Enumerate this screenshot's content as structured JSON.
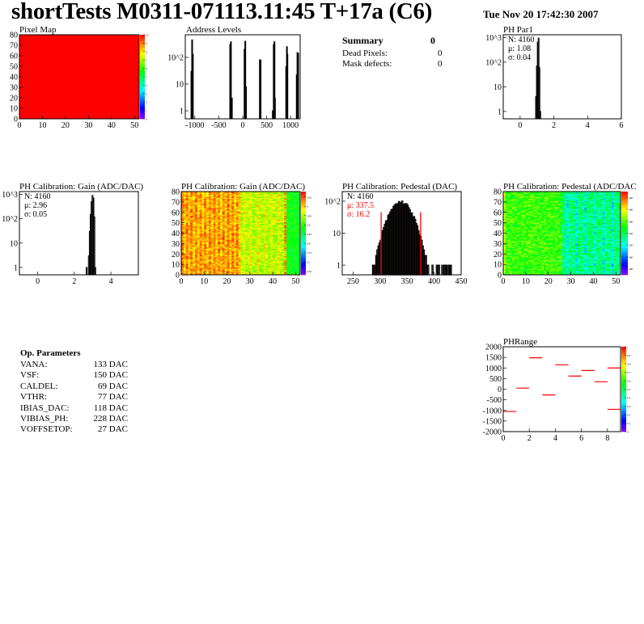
{
  "header": {
    "title": "shortTests M0311-071113.11:45 T+17a (C6)",
    "date": "Tue Nov 20 17:42:30 2007"
  },
  "summary": {
    "title": "Summary",
    "value": "0",
    "rows": [
      {
        "label": "Dead Pixels:",
        "value": "0"
      },
      {
        "label": "Mask defects:",
        "value": "0"
      }
    ]
  },
  "op_parameters": {
    "title": "Op. Parameters",
    "rows": [
      {
        "label": "VANA:",
        "value": "133 DAC"
      },
      {
        "label": "VSF:",
        "value": "150 DAC"
      },
      {
        "label": "CALDEL:",
        "value": "69 DAC"
      },
      {
        "label": "VTHR:",
        "value": "77 DAC"
      },
      {
        "label": "IBIAS_DAC:",
        "value": "118 DAC"
      },
      {
        "label": "VIBIAS_PH:",
        "value": "228 DAC"
      },
      {
        "label": "VOFFSETOP:",
        "value": "27 DAC"
      }
    ]
  },
  "chart_data": [
    {
      "id": "pixelmap",
      "type": "heatmap",
      "title": "Pixel Map",
      "xlim": [
        0,
        52
      ],
      "ylim": [
        0,
        80
      ],
      "xticks": [
        "0",
        "10",
        "20",
        "30",
        "40",
        "50"
      ],
      "yticks": [
        "0",
        "10",
        "20",
        "30",
        "40",
        "50",
        "60",
        "70",
        "80"
      ],
      "zlim": [
        0,
        10
      ],
      "zticks": [
        "0",
        "1",
        "2",
        "3",
        "4",
        "5",
        "6",
        "7",
        "8",
        "9",
        "10"
      ],
      "uniform_value": 10
    },
    {
      "id": "address",
      "type": "bar",
      "title": "Address Levels",
      "xlim": [
        -1200,
        1200
      ],
      "ylim": [
        0.5,
        700
      ],
      "log_y": true,
      "xticks": [
        "-1000",
        "-500",
        "0",
        "500",
        "1000"
      ],
      "yticks": [
        "1",
        "10",
        "10^2"
      ],
      "bins": [
        [
          -1080,
          30
        ],
        [
          -1065,
          450
        ],
        [
          -1050,
          130
        ],
        [
          -270,
          300
        ],
        [
          -255,
          380
        ],
        [
          -245,
          2
        ],
        [
          -235,
          3
        ],
        [
          30,
          200
        ],
        [
          45,
          400
        ],
        [
          60,
          8
        ],
        [
          350,
          80
        ],
        [
          365,
          80
        ],
        [
          620,
          1
        ],
        [
          640,
          300
        ],
        [
          655,
          380
        ],
        [
          665,
          3
        ],
        [
          900,
          45
        ],
        [
          915,
          250
        ],
        [
          925,
          130
        ],
        [
          1120,
          22
        ],
        [
          1135,
          150
        ],
        [
          1150,
          140
        ]
      ]
    },
    {
      "id": "phpar1",
      "type": "bar",
      "title": "PH Par1",
      "xlim": [
        -1,
        6
      ],
      "ylim": [
        0.5,
        1300
      ],
      "log_y": true,
      "xticks": [
        "0",
        "2",
        "4",
        "6"
      ],
      "yticks": [
        "1",
        "10",
        "10^2",
        "10^3"
      ],
      "stats": {
        "n": "N: 4160",
        "mean": "μ: 1.08",
        "sigma": "σ: 0.04"
      },
      "bins": [
        [
          0.92,
          4
        ],
        [
          0.97,
          70
        ],
        [
          1.02,
          650
        ],
        [
          1.07,
          950
        ],
        [
          1.12,
          60
        ],
        [
          1.17,
          1
        ]
      ]
    },
    {
      "id": "gain_hist",
      "type": "bar",
      "title": "PH Calibration: Gain (ADC/DAC)",
      "xlim": [
        -1,
        5.5
      ],
      "ylim": [
        0.5,
        1300
      ],
      "log_y": true,
      "xticks": [
        "0",
        "2",
        "4"
      ],
      "yticks": [
        "1",
        "10",
        "10^2",
        "10^3"
      ],
      "stats": {
        "n": "N: 4160",
        "mean": "μ: 2.96",
        "sigma": "σ: 0.05"
      },
      "bins": [
        [
          2.65,
          1
        ],
        [
          2.77,
          3
        ],
        [
          2.82,
          30
        ],
        [
          2.87,
          150
        ],
        [
          2.92,
          500
        ],
        [
          2.97,
          900
        ],
        [
          3.02,
          700
        ],
        [
          3.07,
          120
        ],
        [
          3.12,
          1
        ]
      ]
    },
    {
      "id": "gain_map",
      "type": "heatmap",
      "title": "PH Calibration: Gain (ADC/DAC)",
      "xlim": [
        0,
        52
      ],
      "ylim": [
        0,
        80
      ],
      "xticks": [
        "0",
        "10",
        "20",
        "30",
        "40",
        "50"
      ],
      "yticks": [
        "0",
        "10",
        "20",
        "30",
        "40",
        "50",
        "60",
        "70",
        "80"
      ],
      "zlim": [
        2.63,
        3.08
      ],
      "zticks": [
        "2.65",
        "2.7",
        "2.75",
        "2.8",
        "2.85",
        "2.9",
        "2.95",
        "3",
        "3.05"
      ]
    },
    {
      "id": "pedestal_hist",
      "type": "bar",
      "title": "PH Calibration: Pedestal (DAC)",
      "xlim": [
        230,
        450
      ],
      "ylim": [
        0.5,
        200
      ],
      "log_y": true,
      "xticks": [
        "250",
        "300",
        "350",
        "400",
        "450"
      ],
      "yticks": [
        "1",
        "10",
        "10^2"
      ],
      "stats": {
        "n": "N: 4160",
        "mean": "μ: 337.5",
        "sigma": "σ: 16.2"
      },
      "fit_range": [
        302,
        375
      ],
      "mean": 337.5,
      "sigma": 16.2,
      "entries": 4160
    },
    {
      "id": "pedestal_map",
      "type": "heatmap",
      "title": "PH Calibration: Pedestal (ADC/DAC",
      "xlim": [
        0,
        52
      ],
      "ylim": [
        0,
        80
      ],
      "xticks": [
        "0",
        "10",
        "20",
        "30",
        "40",
        "50"
      ],
      "yticks": [
        "0",
        "10",
        "20",
        "30",
        "40",
        "50",
        "60",
        "70",
        "80"
      ],
      "zlim": [
        270,
        410
      ],
      "zticks": [
        "280",
        "300",
        "320",
        "340",
        "360",
        "380",
        "400"
      ]
    },
    {
      "id": "phrange",
      "type": "heatmap",
      "title": "PHRange",
      "xlim": [
        0,
        9
      ],
      "ylim": [
        -2000,
        2000
      ],
      "xticks": [
        "0",
        "2",
        "4",
        "6",
        "8"
      ],
      "yticks": [
        "-2000",
        "-1500",
        "-1000",
        "-500",
        "0",
        "500",
        "1000",
        "1500",
        "2000"
      ],
      "zlim": [
        0,
        1
      ],
      "zticks": [
        "0",
        "0.1",
        "0.2",
        "0.3",
        "0.4",
        "0.5",
        "0.6",
        "0.7",
        "0.8",
        "0.9",
        "1"
      ],
      "segments": [
        [
          0,
          -1050
        ],
        [
          1,
          50
        ],
        [
          2,
          1480
        ],
        [
          3,
          -270
        ],
        [
          4,
          1150
        ],
        [
          5,
          620
        ],
        [
          6,
          880
        ],
        [
          7,
          350
        ],
        [
          8,
          1000
        ],
        [
          8,
          -950
        ]
      ]
    }
  ],
  "colors": {
    "hist_line": "#000000",
    "fit_line": "#ff0000",
    "stats_highlight": "#ff0000",
    "phrange_marker": "#ff0000"
  }
}
